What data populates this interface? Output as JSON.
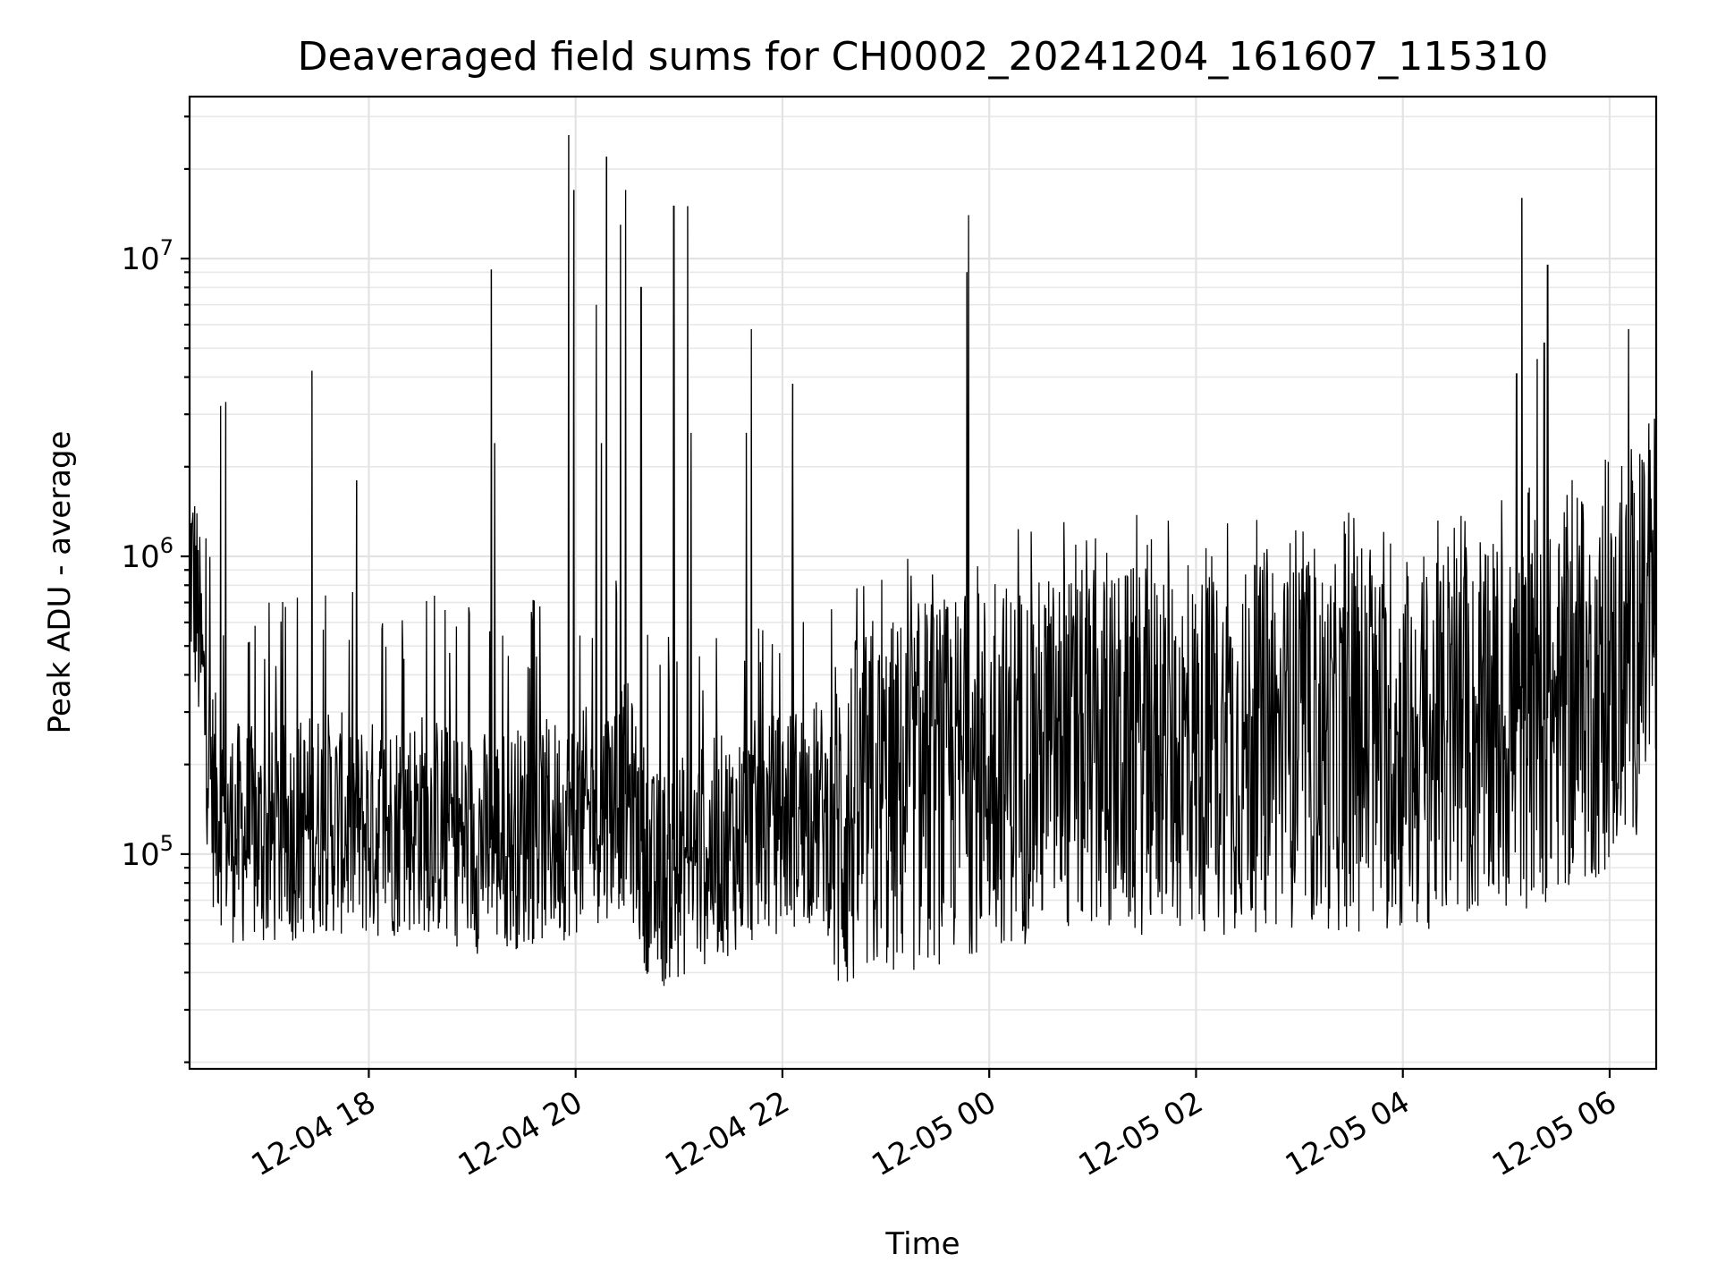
{
  "chart_data": {
    "type": "line",
    "title": "Deaveraged field sums for CH0002_20241204_161607_115310",
    "xlabel": "Time",
    "ylabel": "Peak ADU - average",
    "yscale": "log",
    "ylim": [
      19000,
      35000000
    ],
    "xlim": [
      "2024-12-04 16:16",
      "2024-12-05 06:27"
    ],
    "grid": true,
    "grid_which": "both",
    "line_color": "#000000",
    "x_ticks": [
      {
        "t": "2024-12-04 18:00",
        "label": "12-04 18"
      },
      {
        "t": "2024-12-04 20:00",
        "label": "12-04 20"
      },
      {
        "t": "2024-12-04 22:00",
        "label": "12-04 22"
      },
      {
        "t": "2024-12-05 00:00",
        "label": "12-05 00"
      },
      {
        "t": "2024-12-05 02:00",
        "label": "12-05 02"
      },
      {
        "t": "2024-12-05 04:00",
        "label": "12-05 04"
      },
      {
        "t": "2024-12-05 06:00",
        "label": "12-05 06"
      }
    ],
    "y_ticks": [
      {
        "value": 100000,
        "base": "10",
        "exp": "5"
      },
      {
        "value": 1000000,
        "base": "10",
        "exp": "6"
      },
      {
        "value": 10000000,
        "base": "10",
        "exp": "7"
      }
    ],
    "series": [
      {
        "points": [
          [
            "2024-12-04 16:16",
            1000000
          ],
          [
            "2024-12-04 16:20",
            700000
          ],
          [
            "2024-12-04 16:25",
            300000
          ],
          [
            "2024-12-04 16:30",
            150000
          ],
          [
            "2024-12-04 16:40",
            120000
          ],
          [
            "2024-12-04 17:00",
            110000
          ],
          [
            "2024-12-04 17:30",
            130000
          ],
          [
            "2024-12-04 18:00",
            120000
          ],
          [
            "2024-12-04 18:30",
            130000
          ],
          [
            "2024-12-04 19:00",
            110000
          ],
          [
            "2024-12-04 19:30",
            115000
          ],
          [
            "2024-12-04 20:00",
            125000
          ],
          [
            "2024-12-04 20:30",
            160000
          ],
          [
            "2024-12-04 20:45",
            80000
          ],
          [
            "2024-12-04 21:00",
            90000
          ],
          [
            "2024-12-04 21:30",
            110000
          ],
          [
            "2024-12-04 22:00",
            130000
          ],
          [
            "2024-12-04 22:20",
            140000
          ],
          [
            "2024-12-04 22:30",
            120000
          ],
          [
            "2024-12-04 23:00",
            150000
          ],
          [
            "2024-12-05 00:00",
            200000
          ],
          [
            "2024-12-05 01:00",
            220000
          ],
          [
            "2024-12-05 02:00",
            220000
          ],
          [
            "2024-12-05 03:00",
            230000
          ],
          [
            "2024-12-05 04:00",
            220000
          ],
          [
            "2024-12-05 05:00",
            250000
          ],
          [
            "2024-12-05 06:00",
            350000
          ],
          [
            "2024-12-05 06:27",
            600000
          ]
        ],
        "spikes": [
          [
            "2024-12-04 16:34",
            3200000
          ],
          [
            "2024-12-04 16:37",
            3300000
          ],
          [
            "2024-12-04 17:27",
            4200000
          ],
          [
            "2024-12-04 17:53",
            1800000
          ],
          [
            "2024-12-04 19:11",
            9200000
          ],
          [
            "2024-12-04 19:13",
            2400000
          ],
          [
            "2024-12-04 19:56",
            26000000
          ],
          [
            "2024-12-04 19:59",
            17000000
          ],
          [
            "2024-12-04 20:12",
            7000000
          ],
          [
            "2024-12-04 20:15",
            2400000
          ],
          [
            "2024-12-04 20:18",
            22000000
          ],
          [
            "2024-12-04 20:26",
            13000000
          ],
          [
            "2024-12-04 20:29",
            17000000
          ],
          [
            "2024-12-04 20:38",
            8000000
          ],
          [
            "2024-12-04 20:57",
            15000000
          ],
          [
            "2024-12-04 21:05",
            15000000
          ],
          [
            "2024-12-04 21:07",
            2600000
          ],
          [
            "2024-12-04 21:39",
            2600000
          ],
          [
            "2024-12-04 21:42",
            5800000
          ],
          [
            "2024-12-04 22:06",
            3800000
          ],
          [
            "2024-12-04 23:47",
            9000000
          ],
          [
            "2024-12-04 23:48",
            14000000
          ],
          [
            "2024-12-05 05:06",
            4100000
          ],
          [
            "2024-12-05 05:09",
            16000000
          ],
          [
            "2024-12-05 05:18",
            4600000
          ],
          [
            "2024-12-05 05:22",
            5200000
          ],
          [
            "2024-12-05 05:24",
            9500000
          ],
          [
            "2024-12-05 06:11",
            5800000
          ],
          [
            "2024-12-05 06:26",
            2900000
          ]
        ]
      }
    ]
  }
}
